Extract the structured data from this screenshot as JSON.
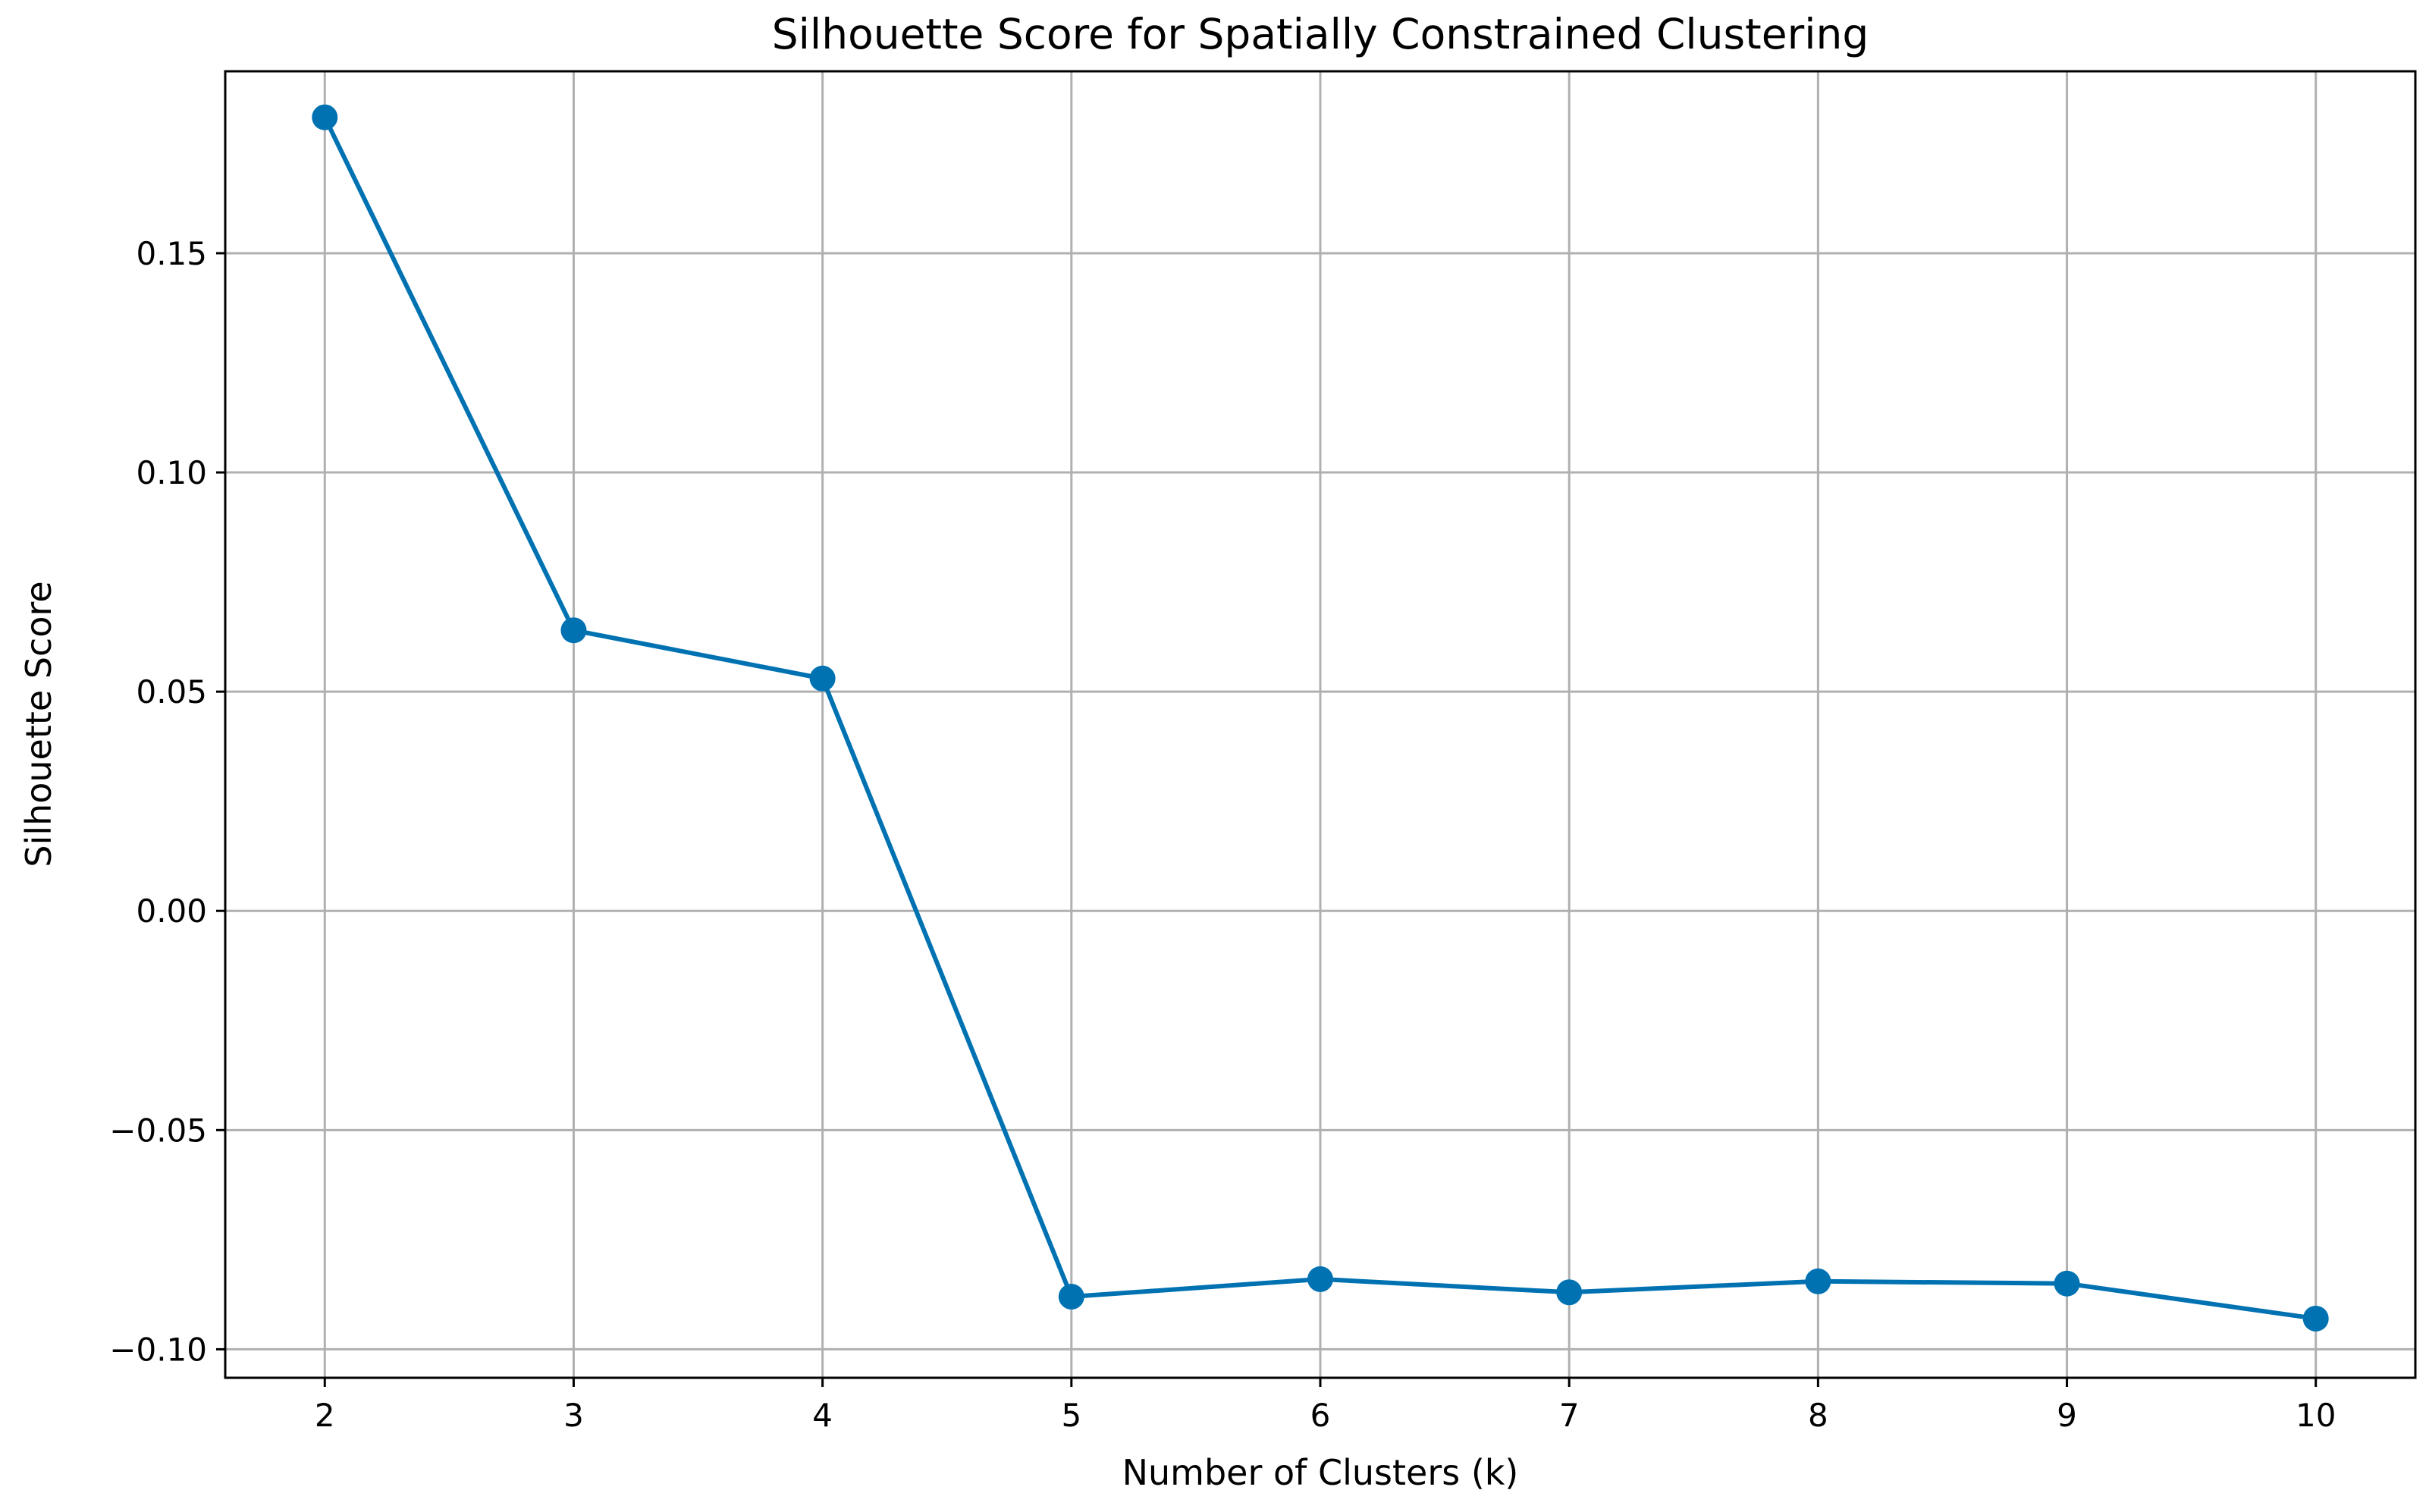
{
  "chart_data": {
    "type": "line",
    "title": "Silhouette Score for Spatially Constrained Clustering",
    "xlabel": "Number of Clusters (k)",
    "ylabel": "Silhouette Score",
    "x": [
      2,
      3,
      4,
      5,
      6,
      7,
      8,
      9,
      10
    ],
    "series": [
      {
        "values": [
          0.181,
          0.064,
          0.053,
          -0.088,
          -0.084,
          -0.087,
          -0.0845,
          -0.085,
          -0.093
        ],
        "color": "#0072b2",
        "marker": "circle"
      }
    ],
    "xticks": [
      "2",
      "3",
      "4",
      "5",
      "6",
      "7",
      "8",
      "9",
      "10"
    ],
    "yticks": [
      {
        "value": 0.15,
        "label": "0.15"
      },
      {
        "value": 0.1,
        "label": "0.10"
      },
      {
        "value": 0.05,
        "label": "0.05"
      },
      {
        "value": 0.0,
        "label": "0.00"
      },
      {
        "value": -0.05,
        "label": "−0.05"
      },
      {
        "value": -0.1,
        "label": "−0.10"
      }
    ],
    "xlim": [
      1.6,
      10.4
    ],
    "ylim": [
      -0.1065,
      0.1915
    ],
    "grid": true,
    "legend": "none"
  }
}
